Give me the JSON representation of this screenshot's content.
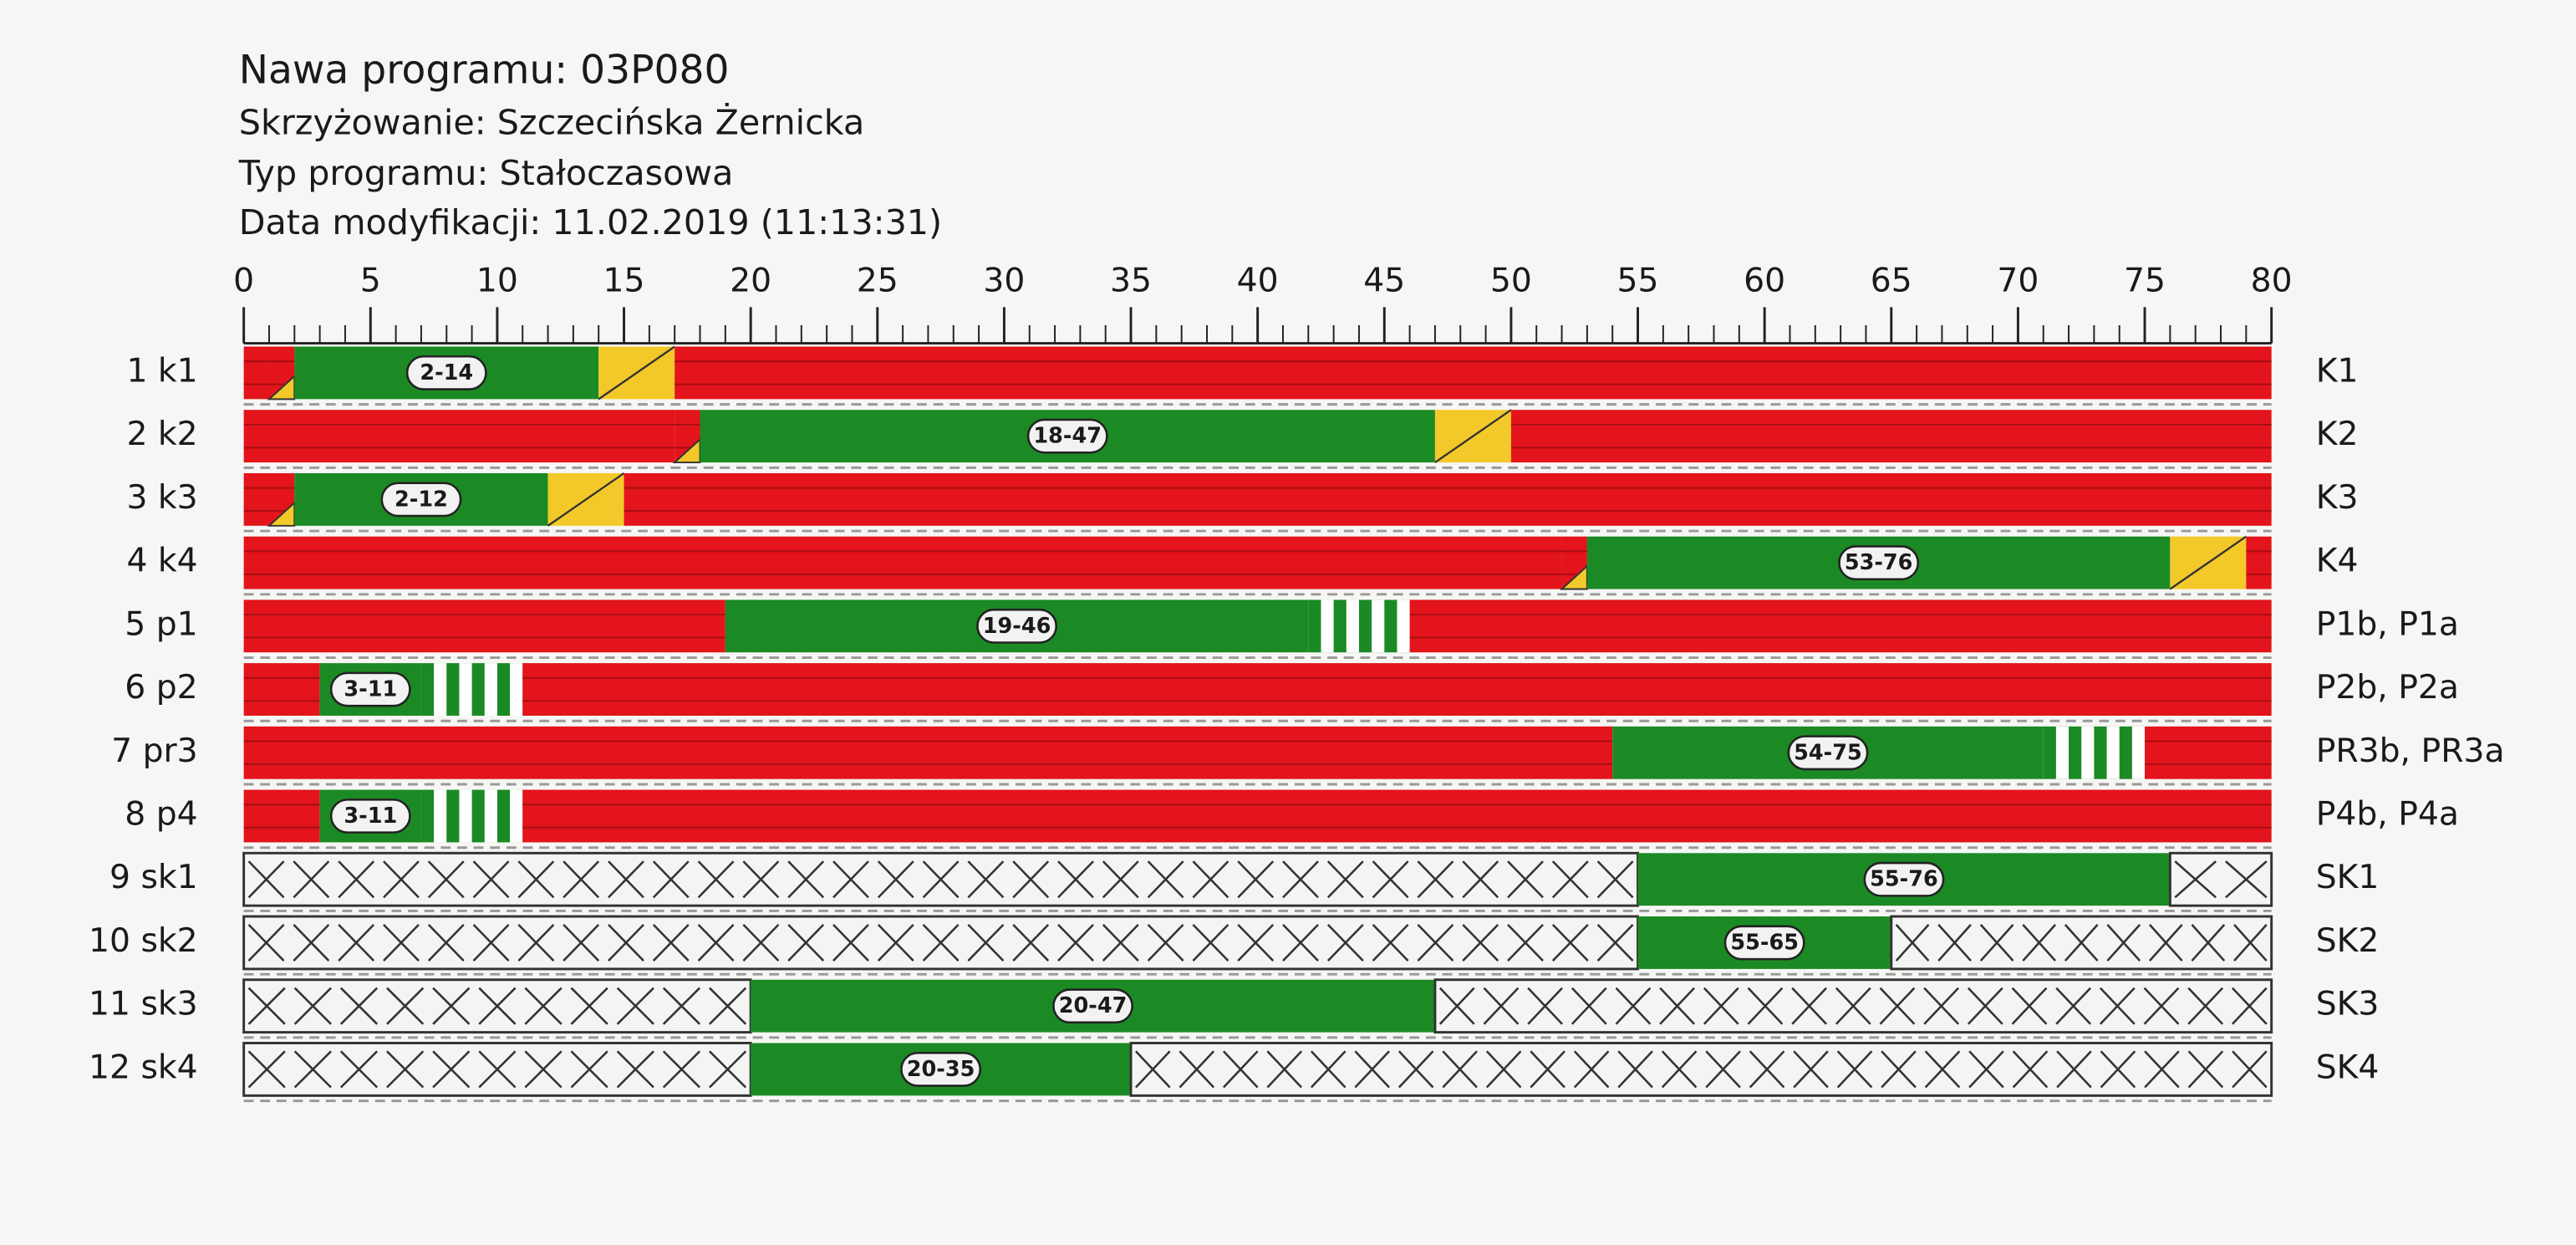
{
  "header": [
    "Nawa programu: 03P080",
    "Skrzyżowanie: Szczecińska Żernicka",
    "Typ programu: Stałoczasowa",
    "Data modyfikacji: 11.02.2019 (11:13:31)"
  ],
  "chart_data": {
    "type": "timeline",
    "xlim": [
      0,
      80
    ],
    "xticks": [
      0,
      5,
      10,
      15,
      20,
      25,
      30,
      35,
      40,
      45,
      50,
      55,
      60,
      65,
      70,
      75,
      80
    ],
    "colors": {
      "red": "#e3141b",
      "red_yellow": "#e3141b",
      "green": "#1c8a24",
      "yellow": "#f3c92a",
      "flashing": "#1c8a24",
      "off": "#f4f4f2"
    },
    "rows": [
      {
        "left": "1 k1",
        "right": "K1",
        "segments": [
          {
            "start": 0,
            "end": 1,
            "state": "red"
          },
          {
            "start": 1,
            "end": 2,
            "state": "red_yellow"
          },
          {
            "start": 2,
            "end": 14,
            "state": "green",
            "label": "2-14"
          },
          {
            "start": 14,
            "end": 17,
            "state": "yellow"
          },
          {
            "start": 17,
            "end": 80,
            "state": "red"
          }
        ]
      },
      {
        "left": "2 k2",
        "right": "K2",
        "segments": [
          {
            "start": 0,
            "end": 17,
            "state": "red"
          },
          {
            "start": 17,
            "end": 18,
            "state": "red_yellow"
          },
          {
            "start": 18,
            "end": 47,
            "state": "green",
            "label": "18-47"
          },
          {
            "start": 47,
            "end": 50,
            "state": "yellow"
          },
          {
            "start": 50,
            "end": 80,
            "state": "red"
          }
        ]
      },
      {
        "left": "3 k3",
        "right": "K3",
        "segments": [
          {
            "start": 0,
            "end": 1,
            "state": "red"
          },
          {
            "start": 1,
            "end": 2,
            "state": "red_yellow"
          },
          {
            "start": 2,
            "end": 12,
            "state": "green",
            "label": "2-12"
          },
          {
            "start": 12,
            "end": 15,
            "state": "yellow"
          },
          {
            "start": 15,
            "end": 80,
            "state": "red"
          }
        ]
      },
      {
        "left": "4 k4",
        "right": "K4",
        "segments": [
          {
            "start": 0,
            "end": 52,
            "state": "red"
          },
          {
            "start": 52,
            "end": 53,
            "state": "red_yellow"
          },
          {
            "start": 53,
            "end": 76,
            "state": "green",
            "label": "53-76"
          },
          {
            "start": 76,
            "end": 79,
            "state": "yellow"
          },
          {
            "start": 79,
            "end": 80,
            "state": "red"
          }
        ]
      },
      {
        "left": "5 p1",
        "right": "P1b, P1a",
        "segments": [
          {
            "start": 0,
            "end": 19,
            "state": "red"
          },
          {
            "start": 19,
            "end": 42,
            "state": "green",
            "label": "19-46"
          },
          {
            "start": 42,
            "end": 46,
            "state": "flashing"
          },
          {
            "start": 46,
            "end": 80,
            "state": "red"
          }
        ]
      },
      {
        "left": "6 p2",
        "right": "P2b, P2a",
        "segments": [
          {
            "start": 0,
            "end": 3,
            "state": "red"
          },
          {
            "start": 3,
            "end": 7,
            "state": "green",
            "label": "3-11"
          },
          {
            "start": 7,
            "end": 11,
            "state": "flashing"
          },
          {
            "start": 11,
            "end": 80,
            "state": "red"
          }
        ]
      },
      {
        "left": "7 pr3",
        "right": "PR3b, PR3a",
        "segments": [
          {
            "start": 0,
            "end": 54,
            "state": "red"
          },
          {
            "start": 54,
            "end": 71,
            "state": "green",
            "label": "54-75"
          },
          {
            "start": 71,
            "end": 75,
            "state": "flashing"
          },
          {
            "start": 75,
            "end": 80,
            "state": "red"
          }
        ]
      },
      {
        "left": "8 p4",
        "right": "P4b, P4a",
        "segments": [
          {
            "start": 0,
            "end": 3,
            "state": "red"
          },
          {
            "start": 3,
            "end": 7,
            "state": "green",
            "label": "3-11"
          },
          {
            "start": 7,
            "end": 11,
            "state": "flashing"
          },
          {
            "start": 11,
            "end": 80,
            "state": "red"
          }
        ]
      },
      {
        "left": "9 sk1",
        "right": "SK1",
        "segments": [
          {
            "start": 0,
            "end": 55,
            "state": "off"
          },
          {
            "start": 55,
            "end": 76,
            "state": "green",
            "label": "55-76"
          },
          {
            "start": 76,
            "end": 80,
            "state": "off"
          }
        ]
      },
      {
        "left": "10 sk2",
        "right": "SK2",
        "segments": [
          {
            "start": 0,
            "end": 55,
            "state": "off"
          },
          {
            "start": 55,
            "end": 65,
            "state": "green",
            "label": "55-65"
          },
          {
            "start": 65,
            "end": 80,
            "state": "off"
          }
        ]
      },
      {
        "left": "11 sk3",
        "right": "SK3",
        "segments": [
          {
            "start": 0,
            "end": 20,
            "state": "off"
          },
          {
            "start": 20,
            "end": 47,
            "state": "green",
            "label": "20-47"
          },
          {
            "start": 47,
            "end": 80,
            "state": "off"
          }
        ]
      },
      {
        "left": "12 sk4",
        "right": "SK4",
        "segments": [
          {
            "start": 0,
            "end": 20,
            "state": "off"
          },
          {
            "start": 20,
            "end": 35,
            "state": "green",
            "label": "20-35"
          },
          {
            "start": 35,
            "end": 80,
            "state": "off"
          }
        ]
      }
    ]
  }
}
